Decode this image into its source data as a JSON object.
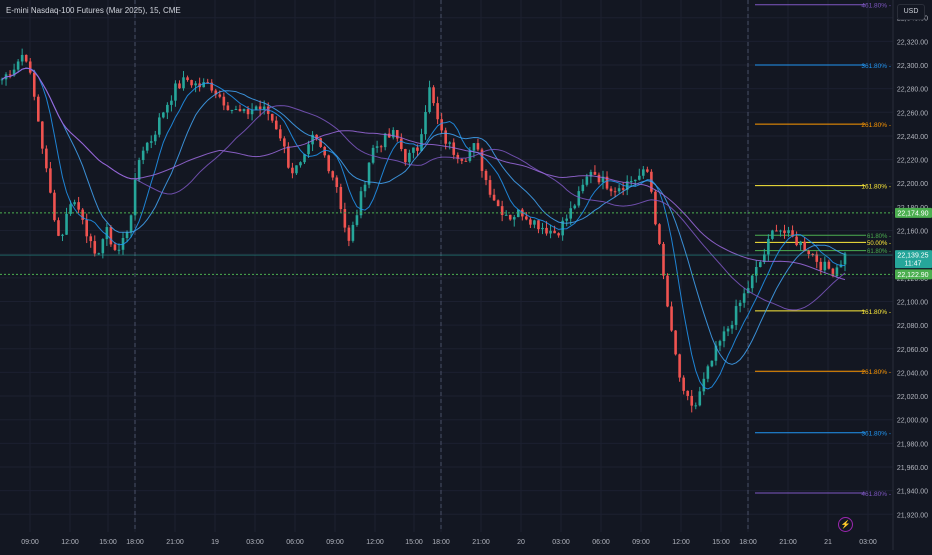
{
  "chart_data": {
    "type": "candlestick",
    "title": "E-mini Nasdaq-100 Futures (Mar 2025), 15, CME",
    "currency": "USD",
    "y_ticks": [
      "22,340.00",
      "22,320.00",
      "22,300.00",
      "22,280.00",
      "22,260.00",
      "22,240.00",
      "22,220.00",
      "22,200.00",
      "22,180.00",
      "22,160.00",
      "22,140.00",
      "22,120.00",
      "22,100.00",
      "22,080.00",
      "22,060.00",
      "22,040.00",
      "22,020.00",
      "22,000.00",
      "21,980.00",
      "21,960.00",
      "21,940.00",
      "21,920.00"
    ],
    "x_ticks": [
      "09:00",
      "12:00",
      "15:00",
      "18:00",
      "21:00",
      "19",
      "03:00",
      "06:00",
      "09:00",
      "12:00",
      "15:00",
      "18:00",
      "21:00",
      "20",
      "03:00",
      "06:00",
      "09:00",
      "12:00",
      "15:00",
      "18:00",
      "21:00",
      "21",
      "03:00"
    ],
    "ylim": [
      21905,
      22355
    ],
    "price_labels": [
      {
        "value": 22174.9,
        "text": "22,174.90",
        "color": "#4caf50"
      },
      {
        "value": 22139.25,
        "text": "22,139.25",
        "sub": "11:47",
        "color": "#26a69a"
      },
      {
        "value": 22122.9,
        "text": "22,122.90",
        "color": "#4caf50"
      }
    ],
    "fib_levels": [
      {
        "label": "461.80%",
        "value": 22351,
        "color": "#7e57c2"
      },
      {
        "label": "361.80%",
        "value": 22300,
        "color": "#2196f3"
      },
      {
        "label": "261.80%",
        "value": 22250,
        "color": "#ff9800"
      },
      {
        "label": "161.80%",
        "value": 22198,
        "color": "#ffeb3b"
      },
      {
        "label": "161.80%",
        "value": 22092,
        "color": "#ffeb3b"
      },
      {
        "label": "261.80%",
        "value": 22041,
        "color": "#ff9800"
      },
      {
        "label": "361.80%",
        "value": 21989,
        "color": "#2196f3"
      },
      {
        "label": "461.80%",
        "value": 21938,
        "color": "#7e57c2"
      }
    ],
    "fib_box": [
      {
        "label": "61.80%",
        "value": 22156,
        "color": "#4caf50"
      },
      {
        "label": "50.00%",
        "value": 22150,
        "color": "#ffeb3b"
      },
      {
        "label": "61.80%",
        "value": 22143,
        "color": "#4caf50"
      }
    ],
    "close_path": [
      22288,
      22298,
      22312,
      22262,
      22200,
      22150,
      22188,
      22172,
      22135,
      22160,
      22140,
      22165,
      22228,
      22238,
      22262,
      22280,
      22288,
      22282,
      22284,
      22272,
      22262,
      22258,
      22265,
      22260,
      22244,
      22210,
      22215,
      22240,
      22222,
      22198,
      22148,
      22185,
      22228,
      22236,
      22242,
      22220,
      22230,
      22280,
      22242,
      22228,
      22222,
      22232,
      22200,
      22180,
      22172,
      22176,
      22168,
      22162,
      22158,
      22172,
      22190,
      22212,
      22202,
      22196,
      22200,
      22205,
      22210,
      22140,
      22070,
      22020,
      22010,
      22038,
      22062,
      22080,
      22100,
      22120,
      22140,
      22165,
      22156,
      22150,
      22142,
      22130,
      22126,
      22139
    ]
  }
}
